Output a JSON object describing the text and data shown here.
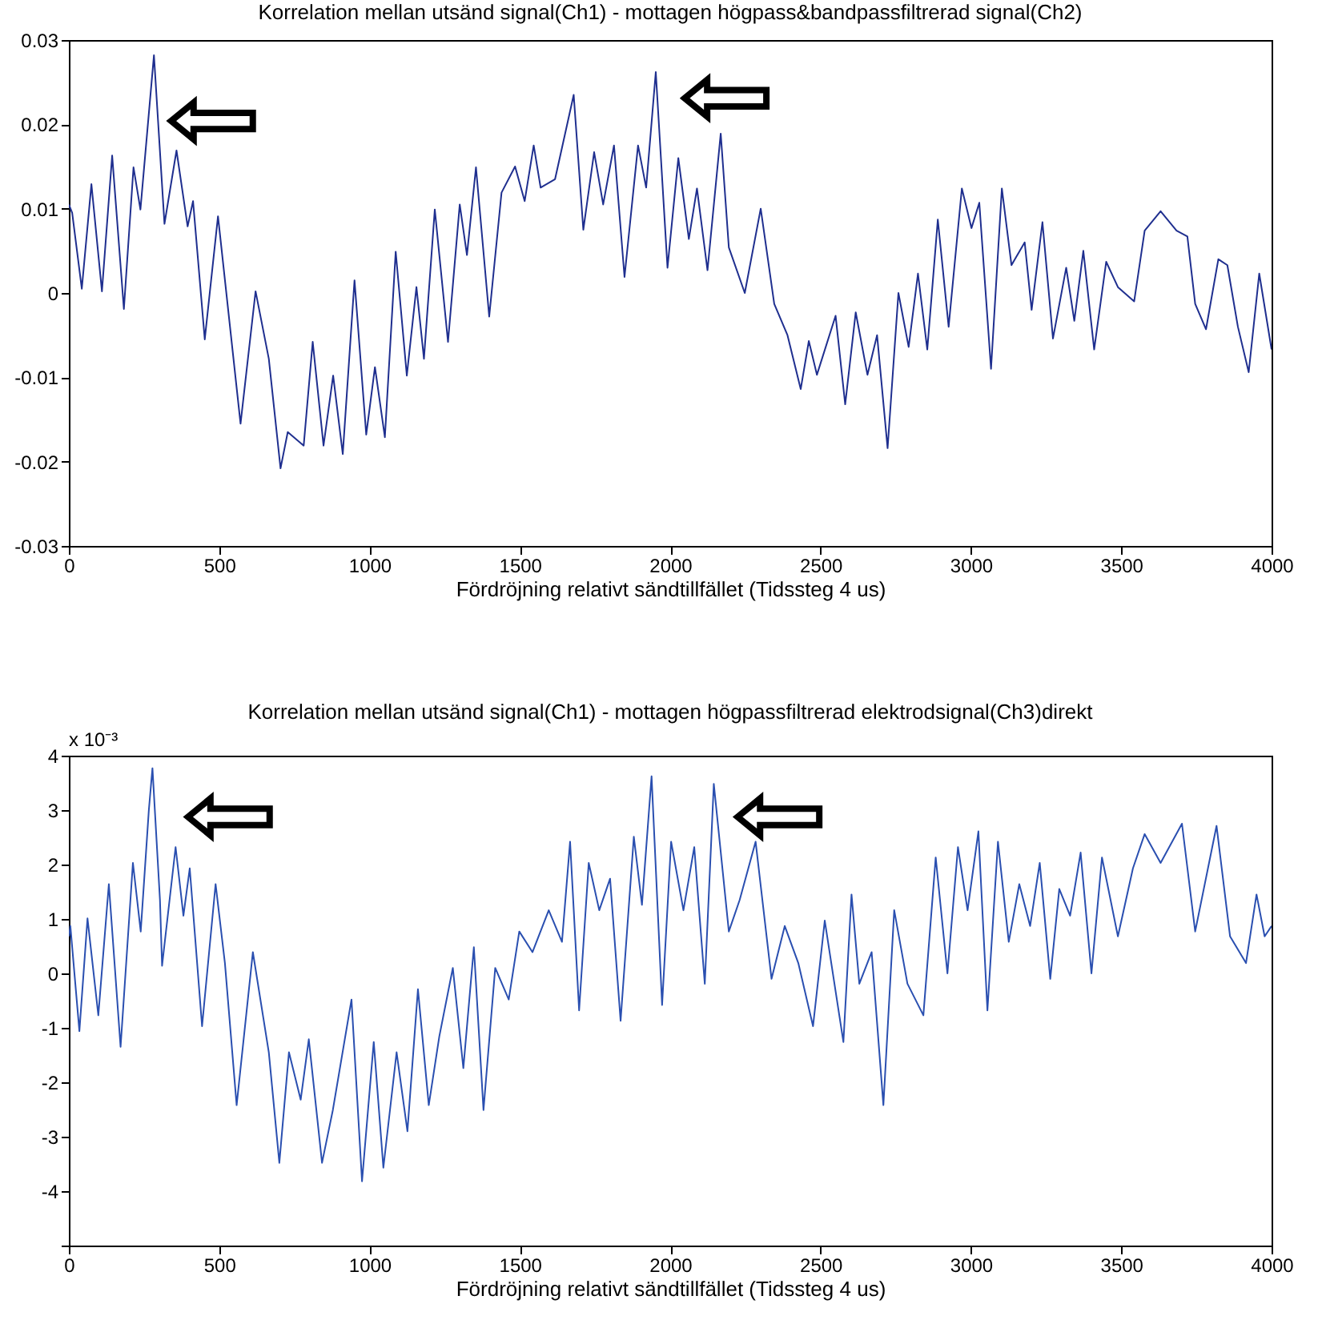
{
  "chart_data": [
    {
      "type": "line",
      "title": "Korrelation mellan utsänd signal(Ch1) - mottagen högpass&bandpassfiltrerad signal(Ch2)",
      "xlabel": "Fördröjning relativt sändtillfället (Tidssteg 4 us)",
      "xlim": [
        0,
        4000
      ],
      "xticks": [
        0,
        500,
        1000,
        1500,
        2000,
        2500,
        3000,
        3500,
        4000
      ],
      "ylim": [
        -0.03,
        0.03
      ],
      "yticks": [
        -0.03,
        -0.02,
        -0.01,
        0,
        0.01,
        0.02,
        0.03
      ],
      "series": [
        {
          "color": "#1f2f8f",
          "x": [
            0,
            11,
            43,
            75,
            110,
            144,
            183,
            215,
            238,
            283,
            318,
            358,
            395,
            413,
            452,
            496,
            571,
            621,
            665,
            704,
            728,
            781,
            811,
            847,
            879,
            911,
            950,
            989,
            1018,
            1051,
            1087,
            1124,
            1156,
            1181,
            1217,
            1261,
            1300,
            1324,
            1354,
            1398,
            1439,
            1484,
            1516,
            1546,
            1569,
            1617,
            1679,
            1711,
            1747,
            1777,
            1813,
            1848,
            1893,
            1920,
            1952,
            1991,
            2027,
            2062,
            2089,
            2124,
            2168,
            2195,
            2248,
            2301,
            2346,
            2390,
            2434,
            2461,
            2488,
            2550,
            2582,
            2617,
            2656,
            2688,
            2723,
            2759,
            2793,
            2824,
            2855,
            2890,
            2926,
            2970,
            3002,
            3028,
            3067,
            3103,
            3135,
            3179,
            3202,
            3238,
            3273,
            3317,
            3344,
            3374,
            3410,
            3450,
            3489,
            3543,
            3578,
            3631,
            3684,
            3720,
            3746,
            3782,
            3823,
            3853,
            3888,
            3924,
            3959,
            4000
          ],
          "values": [
            0.0105,
            0.0095,
            0.0005,
            0.0129,
            0.0002,
            0.0163,
            -0.0019,
            0.0149,
            0.0099,
            0.0282,
            0.0082,
            0.0169,
            0.0079,
            0.0109,
            -0.0055,
            0.0091,
            -0.0155,
            0.0002,
            -0.0078,
            -0.0208,
            -0.0165,
            -0.0181,
            -0.0058,
            -0.0181,
            -0.0098,
            -0.0191,
            0.0015,
            -0.0168,
            -0.0088,
            -0.0171,
            0.0049,
            -0.0098,
            0.0007,
            -0.0078,
            0.0099,
            -0.0058,
            0.0105,
            0.0045,
            0.0149,
            -0.0028,
            0.0119,
            0.015,
            0.0109,
            0.0175,
            0.0125,
            0.0135,
            0.0235,
            0.0075,
            0.0167,
            0.0105,
            0.0175,
            0.0019,
            0.0175,
            0.0125,
            0.0262,
            0.003,
            0.016,
            0.0064,
            0.0124,
            0.0027,
            0.0189,
            0.0054,
            0,
            0.01,
            -0.0013,
            -0.005,
            -0.0114,
            -0.0057,
            -0.0097,
            -0.0027,
            -0.0132,
            -0.0023,
            -0.0097,
            -0.005,
            -0.0184,
            0,
            -0.0064,
            0.0023,
            -0.0067,
            0.0087,
            -0.004,
            0.0124,
            0.0077,
            0.0107,
            -0.009,
            0.0124,
            0.0033,
            0.006,
            -0.002,
            0.0084,
            -0.0054,
            0.003,
            -0.0033,
            0.005,
            -0.0067,
            0.0037,
            0.0007,
            -0.001,
            0.0074,
            0.0097,
            0.0074,
            0.0067,
            -0.0013,
            -0.0043,
            0.004,
            0.0033,
            -0.004,
            -0.0094,
            0.0023,
            -0.0067
          ]
        }
      ]
    },
    {
      "type": "line",
      "title": "Korrelation mellan utsänd signal(Ch1) - mottagen högpassfiltrerad elektrodsignal(Ch3)direkt",
      "xlabel": "Fördröjning relativt sändtillfället (Tidssteg 4 us)",
      "annotations": [
        "x 10⁻³"
      ],
      "xlim": [
        0,
        4000
      ],
      "xticks": [
        0,
        500,
        1000,
        1500,
        2000,
        2500,
        3000,
        3500,
        4000
      ],
      "ylim": [
        -5,
        4
      ],
      "yticks": [
        {
          "value": -5,
          "label": null
        },
        -4,
        -3,
        -2,
        -1,
        0,
        1,
        2,
        3,
        4
      ],
      "series": [
        {
          "color": "#2a4fb0",
          "x": [
            0,
            5,
            35,
            62,
            98,
            133,
            172,
            213,
            239,
            266,
            278,
            303,
            310,
            355,
            381,
            402,
            443,
            488,
            519,
            558,
            612,
            665,
            700,
            732,
            771,
            798,
            842,
            878,
            940,
            975,
            1014,
            1046,
            1090,
            1126,
            1161,
            1197,
            1232,
            1277,
            1312,
            1347,
            1379,
            1418,
            1463,
            1498,
            1542,
            1596,
            1640,
            1667,
            1697,
            1729,
            1764,
            1800,
            1835,
            1879,
            1906,
            1938,
            1973,
            2003,
            2044,
            2080,
            2115,
            2145,
            2195,
            2231,
            2284,
            2337,
            2381,
            2426,
            2475,
            2514,
            2576,
            2603,
            2629,
            2670,
            2709,
            2745,
            2789,
            2842,
            2883,
            2922,
            2957,
            2989,
            3025,
            3055,
            3090,
            3126,
            3161,
            3197,
            3229,
            3264,
            3294,
            3330,
            3365,
            3401,
            3436,
            3489,
            3539,
            3578,
            3631,
            3702,
            3746,
            3817,
            3862,
            3915,
            3950,
            3977,
            4000
          ],
          "values": [
            0.68,
            0.87,
            -1.06,
            1.01,
            -0.77,
            1.64,
            -1.35,
            2.03,
            0.77,
            3.0,
            3.77,
            1.35,
            0.14,
            2.32,
            1.06,
            1.93,
            -0.97,
            1.64,
            0.19,
            -2.42,
            0.39,
            -1.45,
            -3.48,
            -1.45,
            -2.32,
            -1.21,
            -3.48,
            -2.51,
            -0.48,
            -3.82,
            -1.26,
            -3.57,
            -1.45,
            -2.9,
            -0.29,
            -2.42,
            -1.16,
            0.1,
            -1.74,
            0.48,
            -2.51,
            0.1,
            -0.48,
            0.77,
            0.39,
            1.16,
            0.58,
            2.42,
            -0.68,
            2.03,
            1.16,
            1.74,
            -0.87,
            2.51,
            1.26,
            3.62,
            -0.58,
            2.42,
            1.16,
            2.32,
            -0.19,
            3.48,
            0.77,
            1.35,
            2.42,
            -0.1,
            0.87,
            0.19,
            -0.97,
            0.97,
            -1.26,
            1.45,
            -0.19,
            0.39,
            -2.42,
            1.16,
            -0.19,
            -0.77,
            2.13,
            0,
            2.32,
            1.16,
            2.61,
            -0.68,
            2.42,
            0.58,
            1.64,
            0.87,
            2.03,
            -0.1,
            1.55,
            1.06,
            2.22,
            0,
            2.13,
            0.68,
            1.93,
            2.56,
            2.03,
            2.75,
            0.77,
            2.71,
            0.68,
            0.19,
            1.45,
            0.68,
            0.87
          ]
        }
      ]
    }
  ]
}
